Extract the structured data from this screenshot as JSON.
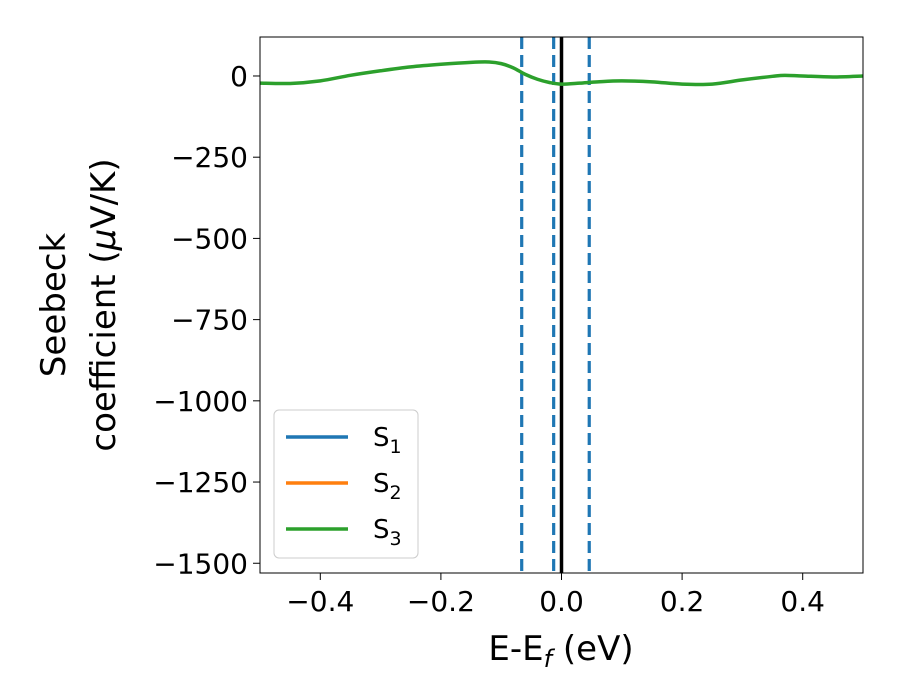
{
  "chart_data": {
    "type": "line",
    "xlabel": {
      "main": "E-E",
      "sub": "f",
      "tail": " (eV)"
    },
    "ylabel": {
      "line1": "Seebeck",
      "line2_a": "coefficient  (",
      "line2_mu": "μ",
      "line2_b": "V/K)"
    },
    "xlim": [
      -0.5,
      0.5
    ],
    "ylim": [
      -1530,
      120
    ],
    "x_ticks": [
      -0.4,
      -0.2,
      0.0,
      0.2,
      0.4
    ],
    "x_tick_labels": [
      "−0.4",
      "−0.2",
      "0.0",
      "0.2",
      "0.4"
    ],
    "y_ticks": [
      0,
      -250,
      -500,
      -750,
      -1000,
      -1250,
      -1500
    ],
    "y_tick_labels": [
      "0",
      "−250",
      "−500",
      "−750",
      "−1000",
      "−1250",
      "−1500"
    ],
    "grid": false,
    "legend_position": "lower-left",
    "series": [
      {
        "name": "S",
        "sub": "1",
        "color": "#1f77b4",
        "x": [],
        "y": []
      },
      {
        "name": "S",
        "sub": "2",
        "color": "#ff7f0e",
        "x": [],
        "y": []
      },
      {
        "name": "S",
        "sub": "3",
        "color": "#2ca02c",
        "x": [
          -0.5,
          -0.45,
          -0.4,
          -0.35,
          -0.3,
          -0.25,
          -0.2,
          -0.15,
          -0.12,
          -0.1,
          -0.08,
          -0.06,
          -0.04,
          -0.02,
          0.0,
          0.03,
          0.06,
          0.1,
          0.15,
          0.2,
          0.25,
          0.3,
          0.35,
          0.37,
          0.4,
          0.45,
          0.5
        ],
        "y": [
          -22,
          -23,
          -15,
          2,
          16,
          28,
          36,
          42,
          43,
          38,
          25,
          5,
          -10,
          -20,
          -25,
          -22,
          -18,
          -15,
          -18,
          -25,
          -25,
          -12,
          -1,
          2,
          0,
          -3,
          0
        ]
      }
    ],
    "vertical_lines": [
      {
        "x": 0.0,
        "color": "#000000",
        "style": "solid"
      },
      {
        "x": -0.066,
        "color": "#1f77b4",
        "style": "dashed"
      },
      {
        "x": -0.013,
        "color": "#1f77b4",
        "style": "dashed"
      },
      {
        "x": 0.046,
        "color": "#1f77b4",
        "style": "dashed"
      }
    ]
  }
}
